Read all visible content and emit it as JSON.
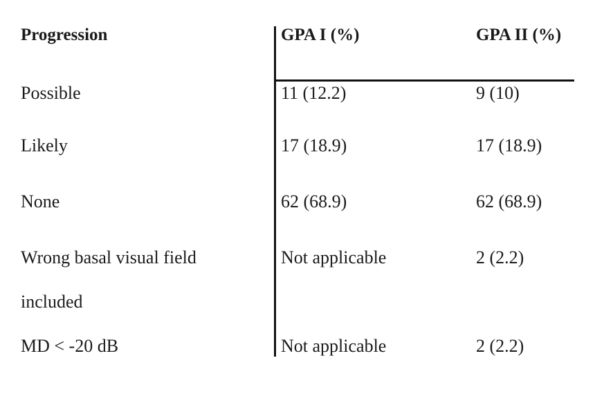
{
  "table": {
    "headers": [
      "Progression",
      "GPA I (%)",
      "GPA II (%)"
    ],
    "rows": [
      {
        "label": "Possible",
        "label_cont": "",
        "gpa1": "11 (12.2)",
        "gpa2": "9 (10)"
      },
      {
        "label": "Likely",
        "label_cont": "",
        "gpa1": "17 (18.9)",
        "gpa2": "17 (18.9)"
      },
      {
        "label": "None",
        "label_cont": "",
        "gpa1": "62 (68.9)",
        "gpa2": "62 (68.9)"
      },
      {
        "label": "Wrong basal visual field",
        "label_cont": "included",
        "gpa1": "Not applicable",
        "gpa2": "2 (2.2)"
      },
      {
        "label": "MD < -20 dB",
        "label_cont": "",
        "gpa1": "Not applicable",
        "gpa2": "2 (2.2)"
      }
    ]
  }
}
